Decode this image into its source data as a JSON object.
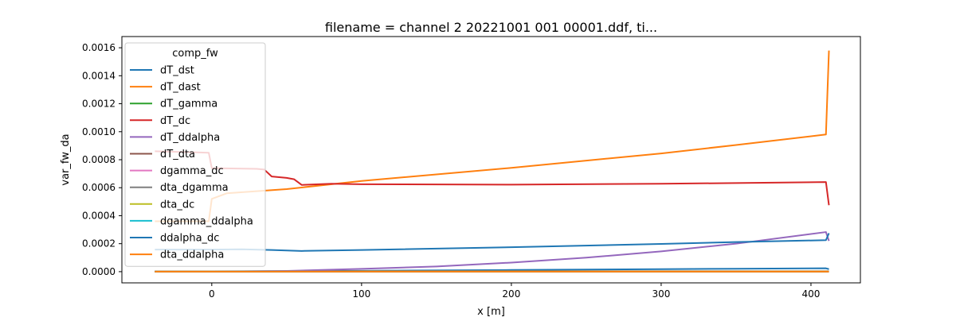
{
  "chart_data": {
    "type": "line",
    "title": "filename = channel 2 20221001 001 00001.ddf, ti...",
    "xlabel": "x [m]",
    "ylabel": "var_fw_da",
    "xlim": [
      -60,
      433
    ],
    "ylim": [
      -8e-05,
      0.00168
    ],
    "xticks": [
      0,
      100,
      200,
      300,
      400
    ],
    "yticks": [
      0.0,
      0.0002,
      0.0004,
      0.0006,
      0.0008,
      0.001,
      0.0012,
      0.0014,
      0.0016
    ],
    "ytick_labels": [
      "0.0000",
      "0.0002",
      "0.0004",
      "0.0006",
      "0.0008",
      "0.0010",
      "0.0012",
      "0.0014",
      "0.0016"
    ],
    "grid": false,
    "legend": {
      "title": "comp_fw",
      "placement": "upper-left"
    },
    "series": [
      {
        "name": "dT_dst",
        "color": "#1f77b4",
        "points": [
          [
            -38,
            2.5e-06
          ],
          [
            0,
            2.5e-06
          ],
          [
            100,
            6e-06
          ],
          [
            200,
            1.2e-05
          ],
          [
            300,
            1.8e-05
          ],
          [
            350,
            2.1e-05
          ],
          [
            410,
            2.4e-05
          ],
          [
            412,
            1.8e-05
          ]
        ]
      },
      {
        "name": "dT_dast",
        "color": "#ff7f0e",
        "points": [
          [
            -38,
            1.5e-06
          ],
          [
            0,
            1.5e-06
          ],
          [
            100,
            3e-06
          ],
          [
            200,
            3e-06
          ],
          [
            300,
            3e-06
          ],
          [
            412,
            3e-06
          ]
        ]
      },
      {
        "name": "dT_gamma",
        "color": "#2ca02c",
        "points": [
          [
            -38,
            1e-06
          ],
          [
            412,
            1e-06
          ]
        ]
      },
      {
        "name": "dT_dc",
        "color": "#d62728",
        "points": [
          [
            -38,
            5e-07
          ],
          [
            412,
            5e-07
          ]
        ]
      },
      {
        "name": "dT_ddalpha",
        "color": "#9467bd",
        "points": [
          [
            -38,
            5e-07
          ],
          [
            0,
            5e-07
          ],
          [
            50,
            5e-06
          ],
          [
            100,
            2e-05
          ],
          [
            150,
            3.7e-05
          ],
          [
            200,
            6.5e-05
          ],
          [
            250,
            0.0001
          ],
          [
            300,
            0.000145
          ],
          [
            350,
            0.0002
          ],
          [
            410,
            0.000283
          ],
          [
            412,
            0.00022
          ]
        ]
      },
      {
        "name": "dT_dta",
        "color": "#8c564b",
        "points": [
          [
            -38,
            3e-07
          ],
          [
            412,
            3e-07
          ]
        ]
      },
      {
        "name": "dgamma_dc",
        "color": "#e377c2",
        "points": [
          [
            -38,
            3e-07
          ],
          [
            412,
            3e-07
          ]
        ]
      },
      {
        "name": "dta_dgamma",
        "color": "#7f7f7f",
        "points": [
          [
            -38,
            3e-07
          ],
          [
            412,
            3e-07
          ]
        ]
      },
      {
        "name": "dta_dc",
        "color": "#bcbd22",
        "points": [
          [
            -38,
            2e-07
          ],
          [
            412,
            2e-07
          ]
        ]
      },
      {
        "name": "dgamma_ddalpha",
        "color": "#17becf",
        "points": [
          [
            -38,
            2e-07
          ],
          [
            412,
            2e-07
          ]
        ]
      },
      {
        "name": "ddalpha_dc",
        "color": "#1f77b4",
        "points": [
          [
            -38,
            0.000158
          ],
          [
            0,
            0.000158
          ],
          [
            20,
            0.00016
          ],
          [
            40,
            0.000155
          ],
          [
            60,
            0.000148
          ],
          [
            100,
            0.000155
          ],
          [
            200,
            0.000175
          ],
          [
            300,
            0.000198
          ],
          [
            350,
            0.000212
          ],
          [
            410,
            0.000225
          ],
          [
            412,
            0.000275
          ]
        ]
      },
      {
        "name": "dta_ddalpha",
        "color": "#ff7f0e",
        "points": [
          [
            -38,
            5e-07
          ],
          [
            412,
            5e-07
          ]
        ]
      },
      {
        "name": "",
        "color": "#ff7f0e",
        "points": [
          [
            -38,
            0.00036
          ],
          [
            -2,
            0.00036
          ],
          [
            0,
            0.00052
          ],
          [
            10,
            0.00056
          ],
          [
            50,
            0.00059
          ],
          [
            100,
            0.000648
          ],
          [
            200,
            0.000742
          ],
          [
            300,
            0.000845
          ],
          [
            350,
            0.000905
          ],
          [
            410,
            0.00098
          ],
          [
            412,
            0.00158
          ]
        ]
      },
      {
        "name": "",
        "color": "#d62728",
        "points": [
          [
            -38,
            0.00086
          ],
          [
            -2,
            0.00085
          ],
          [
            0,
            0.00074
          ],
          [
            30,
            0.000735
          ],
          [
            35,
            0.00073
          ],
          [
            40,
            0.00068
          ],
          [
            50,
            0.00067
          ],
          [
            55,
            0.00066
          ],
          [
            60,
            0.00062
          ],
          [
            80,
            0.000628
          ],
          [
            100,
            0.000625
          ],
          [
            200,
            0.000622
          ],
          [
            300,
            0.000628
          ],
          [
            410,
            0.00064
          ],
          [
            412,
            0.000475
          ]
        ]
      }
    ]
  }
}
